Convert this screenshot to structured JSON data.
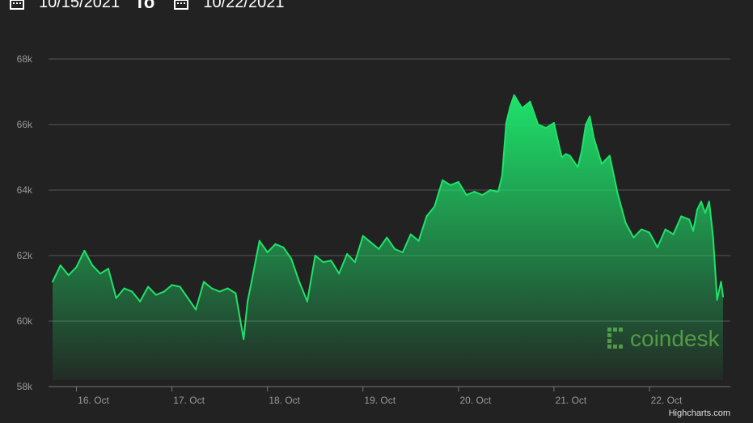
{
  "date_range": {
    "from": "10/15/2021",
    "separator": "To",
    "to": "10/22/2021"
  },
  "watermark": {
    "text": "coindesk"
  },
  "credits": "Highcharts.com",
  "colors": {
    "line": "#1ee36a",
    "grid": "#555555",
    "background": "#222222"
  },
  "chart_data": {
    "type": "area",
    "title": "",
    "xlabel": "",
    "ylabel": "",
    "ylim": [
      58000,
      68000
    ],
    "y_ticks": [
      58000,
      60000,
      62000,
      64000,
      66000,
      68000
    ],
    "y_tick_labels": [
      "58k",
      "60k",
      "62k",
      "64k",
      "66k",
      "68k"
    ],
    "x_range": [
      "2021-10-15T18:00",
      "2021-10-22T18:30"
    ],
    "x_ticks": [
      "2021-10-16T00:00",
      "2021-10-17T00:00",
      "2021-10-18T00:00",
      "2021-10-19T00:00",
      "2021-10-20T00:00",
      "2021-10-21T00:00",
      "2021-10-22T00:00"
    ],
    "x_tick_labels": [
      "16. Oct",
      "17. Oct",
      "18. Oct",
      "19. Oct",
      "20. Oct",
      "21. Oct",
      "22. Oct"
    ],
    "grid": true,
    "legend": "none",
    "series": [
      {
        "x": [
          "2021-10-15T18:00",
          "2021-10-15T20:00",
          "2021-10-15T22:00",
          "2021-10-16T00:00",
          "2021-10-16T02:00",
          "2021-10-16T04:00",
          "2021-10-16T06:00",
          "2021-10-16T08:00",
          "2021-10-16T10:00",
          "2021-10-16T12:00",
          "2021-10-16T14:00",
          "2021-10-16T16:00",
          "2021-10-16T18:00",
          "2021-10-16T20:00",
          "2021-10-16T22:00",
          "2021-10-17T00:00",
          "2021-10-17T02:00",
          "2021-10-17T04:00",
          "2021-10-17T06:00",
          "2021-10-17T08:00",
          "2021-10-17T10:00",
          "2021-10-17T12:00",
          "2021-10-17T14:00",
          "2021-10-17T16:00",
          "2021-10-17T18:00",
          "2021-10-17T19:00",
          "2021-10-17T20:00",
          "2021-10-17T22:00",
          "2021-10-18T00:00",
          "2021-10-18T02:00",
          "2021-10-18T04:00",
          "2021-10-18T06:00",
          "2021-10-18T08:00",
          "2021-10-18T10:00",
          "2021-10-18T12:00",
          "2021-10-18T14:00",
          "2021-10-18T16:00",
          "2021-10-18T18:00",
          "2021-10-18T20:00",
          "2021-10-18T22:00",
          "2021-10-19T00:00",
          "2021-10-19T02:00",
          "2021-10-19T04:00",
          "2021-10-19T06:00",
          "2021-10-19T08:00",
          "2021-10-19T10:00",
          "2021-10-19T12:00",
          "2021-10-19T14:00",
          "2021-10-19T16:00",
          "2021-10-19T18:00",
          "2021-10-19T20:00",
          "2021-10-19T22:00",
          "2021-10-20T00:00",
          "2021-10-20T02:00",
          "2021-10-20T04:00",
          "2021-10-20T06:00",
          "2021-10-20T08:00",
          "2021-10-20T10:00",
          "2021-10-20T11:00",
          "2021-10-20T12:00",
          "2021-10-20T13:00",
          "2021-10-20T14:00",
          "2021-10-20T16:00",
          "2021-10-20T18:00",
          "2021-10-20T20:00",
          "2021-10-20T22:00",
          "2021-10-21T00:00",
          "2021-10-21T01:00",
          "2021-10-21T02:00",
          "2021-10-21T03:00",
          "2021-10-21T04:00",
          "2021-10-21T06:00",
          "2021-10-21T07:00",
          "2021-10-21T08:00",
          "2021-10-21T09:00",
          "2021-10-21T10:00",
          "2021-10-21T12:00",
          "2021-10-21T14:00",
          "2021-10-21T16:00",
          "2021-10-21T18:00",
          "2021-10-21T20:00",
          "2021-10-21T22:00",
          "2021-10-22T00:00",
          "2021-10-22T02:00",
          "2021-10-22T04:00",
          "2021-10-22T06:00",
          "2021-10-22T08:00",
          "2021-10-22T10:00",
          "2021-10-22T11:00",
          "2021-10-22T12:00",
          "2021-10-22T13:00",
          "2021-10-22T14:00",
          "2021-10-22T15:00",
          "2021-10-22T16:00",
          "2021-10-22T17:00",
          "2021-10-22T18:00",
          "2021-10-22T18:30"
        ],
        "y": [
          61200,
          61700,
          61400,
          61650,
          62150,
          61700,
          61450,
          61600,
          60700,
          61000,
          60900,
          60600,
          61050,
          60800,
          60900,
          61100,
          61050,
          60700,
          60350,
          61200,
          61000,
          60900,
          61000,
          60850,
          59450,
          60600,
          61200,
          62450,
          62100,
          62350,
          62250,
          61900,
          61200,
          60600,
          62000,
          61800,
          61850,
          61450,
          62050,
          61800,
          62600,
          62400,
          62200,
          62550,
          62200,
          62100,
          62650,
          62450,
          63200,
          63500,
          64300,
          64150,
          64250,
          63850,
          63950,
          63850,
          64000,
          63950,
          64450,
          66050,
          66550,
          66900,
          66500,
          66700,
          66000,
          65900,
          66050,
          65500,
          65000,
          65100,
          65050,
          64700,
          65200,
          66000,
          66250,
          65600,
          64800,
          65050,
          63900,
          63000,
          62550,
          62800,
          62700,
          62250,
          62800,
          62650,
          63200,
          63100,
          62750,
          63400,
          63650,
          63300,
          63650,
          62550,
          60650,
          61200,
          60750
        ]
      }
    ]
  }
}
